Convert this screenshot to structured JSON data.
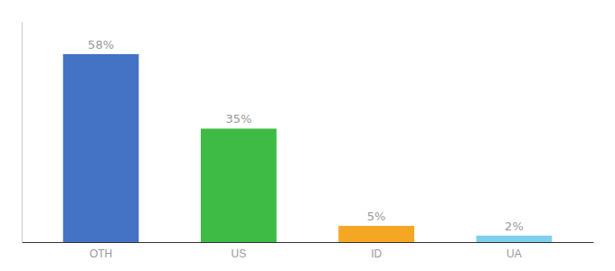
{
  "chart_data": {
    "type": "bar",
    "categories": [
      "OTH",
      "US",
      "ID",
      "UA"
    ],
    "values": [
      58,
      35,
      5,
      2
    ],
    "value_labels": [
      "58%",
      "35%",
      "5%",
      "2%"
    ],
    "colors": [
      "#4472c4",
      "#3dbb45",
      "#f5a623",
      "#7ecfed"
    ],
    "ylim": [
      0,
      68
    ],
    "data_labels": true,
    "tick_labels": "x",
    "grid": false
  }
}
